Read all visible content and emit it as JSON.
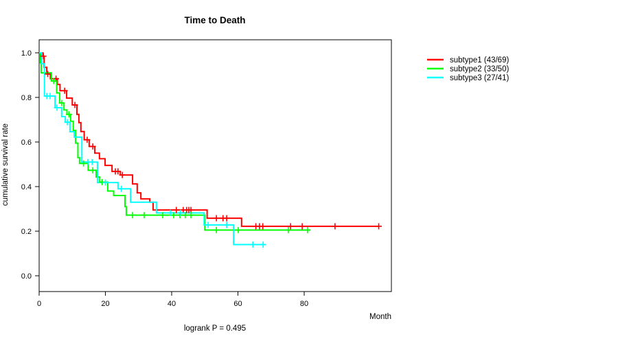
{
  "chart_data": {
    "type": "line",
    "subtype": "kaplan-meier-step-curves",
    "title": "Time to Death",
    "xlabel": "Month",
    "ylabel": "cumulative survival rate",
    "annotation": "logrank P = 0.495",
    "grid": false,
    "legend_position": "right-outside",
    "x_axis": {
      "min": 0,
      "max": 106,
      "ticks": [
        0,
        20,
        40,
        60,
        80
      ],
      "tick_labels": [
        "0",
        "20",
        "40",
        "60",
        "80"
      ]
    },
    "y_axis": {
      "min": 0.0,
      "max": 1.0,
      "ticks": [
        0.0,
        0.2,
        0.4,
        0.6,
        0.8,
        1.0
      ],
      "tick_labels": [
        "0.0",
        "0.2",
        "0.4",
        "0.6",
        "0.8",
        "1.0"
      ]
    },
    "series": [
      {
        "name": "subtype1 (43/69)",
        "color": "#ff0000",
        "events": 43,
        "n": 69,
        "end_month": 102.5,
        "steps": [
          [
            0,
            1.0
          ],
          [
            1.1,
            0.985
          ],
          [
            1.5,
            0.935
          ],
          [
            2.3,
            0.905
          ],
          [
            3.4,
            0.884
          ],
          [
            5.5,
            0.858
          ],
          [
            6.3,
            0.83
          ],
          [
            8.3,
            0.797
          ],
          [
            10.0,
            0.766
          ],
          [
            11.4,
            0.724
          ],
          [
            12.0,
            0.687
          ],
          [
            12.6,
            0.647
          ],
          [
            13.6,
            0.61
          ],
          [
            15.1,
            0.58
          ],
          [
            16.8,
            0.55
          ],
          [
            18.2,
            0.525
          ],
          [
            19.9,
            0.495
          ],
          [
            22.0,
            0.468
          ],
          [
            24.5,
            0.452
          ],
          [
            28.2,
            0.412
          ],
          [
            29.6,
            0.372
          ],
          [
            30.7,
            0.345
          ],
          [
            33.4,
            0.33
          ],
          [
            34.4,
            0.295
          ],
          [
            50.7,
            0.258
          ],
          [
            61.1,
            0.222
          ]
        ],
        "censors": [
          [
            1.3,
            0.985
          ],
          [
            2.6,
            0.905
          ],
          [
            5.1,
            0.884
          ],
          [
            7.7,
            0.83
          ],
          [
            10.8,
            0.766
          ],
          [
            14.5,
            0.61
          ],
          [
            16.2,
            0.58
          ],
          [
            23.0,
            0.468
          ],
          [
            23.8,
            0.468
          ],
          [
            25.1,
            0.452
          ],
          [
            41.4,
            0.295
          ],
          [
            43.5,
            0.295
          ],
          [
            44.5,
            0.295
          ],
          [
            45.2,
            0.295
          ],
          [
            45.8,
            0.295
          ],
          [
            53.5,
            0.258
          ],
          [
            55.5,
            0.258
          ],
          [
            56.6,
            0.258
          ],
          [
            65.4,
            0.222
          ],
          [
            66.5,
            0.222
          ],
          [
            67.5,
            0.222
          ],
          [
            75.9,
            0.222
          ],
          [
            79.4,
            0.222
          ],
          [
            89.3,
            0.222
          ],
          [
            102.5,
            0.222
          ]
        ]
      },
      {
        "name": "subtype2 (33/50)",
        "color": "#00ff00",
        "events": 33,
        "n": 50,
        "end_month": 81.9,
        "steps": [
          [
            0,
            1.0
          ],
          [
            0.4,
            0.955
          ],
          [
            0.6,
            0.91
          ],
          [
            3.7,
            0.874
          ],
          [
            5.3,
            0.82
          ],
          [
            6.2,
            0.775
          ],
          [
            7.5,
            0.744
          ],
          [
            8.4,
            0.724
          ],
          [
            9.5,
            0.693
          ],
          [
            10.3,
            0.652
          ],
          [
            11.0,
            0.595
          ],
          [
            11.7,
            0.53
          ],
          [
            12.2,
            0.504
          ],
          [
            14.8,
            0.473
          ],
          [
            17.2,
            0.443
          ],
          [
            18.3,
            0.42
          ],
          [
            20.7,
            0.38
          ],
          [
            22.5,
            0.36
          ],
          [
            25.9,
            0.31
          ],
          [
            26.3,
            0.272
          ],
          [
            50.0,
            0.205
          ]
        ],
        "censors": [
          [
            4.4,
            0.874
          ],
          [
            6.8,
            0.775
          ],
          [
            9.0,
            0.724
          ],
          [
            13.4,
            0.504
          ],
          [
            16.2,
            0.473
          ],
          [
            19.0,
            0.42
          ],
          [
            28.2,
            0.272
          ],
          [
            31.7,
            0.272
          ],
          [
            37.3,
            0.272
          ],
          [
            40.6,
            0.272
          ],
          [
            42.5,
            0.272
          ],
          [
            44.1,
            0.272
          ],
          [
            45.8,
            0.272
          ],
          [
            53.5,
            0.205
          ],
          [
            60.1,
            0.205
          ],
          [
            75.2,
            0.205
          ],
          [
            81.0,
            0.205
          ]
        ]
      },
      {
        "name": "subtype3 (27/41)",
        "color": "#00ffff",
        "events": 27,
        "n": 41,
        "end_month": 68.3,
        "steps": [
          [
            0,
            1.0
          ],
          [
            0.8,
            0.951
          ],
          [
            1.6,
            0.806
          ],
          [
            4.8,
            0.754
          ],
          [
            6.8,
            0.714
          ],
          [
            7.9,
            0.689
          ],
          [
            9.3,
            0.646
          ],
          [
            10.6,
            0.622
          ],
          [
            12.9,
            0.51
          ],
          [
            17.6,
            0.418
          ],
          [
            23.8,
            0.39
          ],
          [
            27.6,
            0.33
          ],
          [
            35.4,
            0.282
          ],
          [
            49.8,
            0.228
          ],
          [
            58.7,
            0.14
          ]
        ],
        "censors": [
          [
            2.3,
            0.806
          ],
          [
            3.3,
            0.806
          ],
          [
            5.4,
            0.754
          ],
          [
            8.5,
            0.689
          ],
          [
            14.7,
            0.51
          ],
          [
            16.0,
            0.51
          ],
          [
            20.0,
            0.418
          ],
          [
            24.8,
            0.39
          ],
          [
            39.6,
            0.282
          ],
          [
            42.7,
            0.282
          ],
          [
            51.0,
            0.228
          ],
          [
            56.6,
            0.228
          ],
          [
            64.5,
            0.14
          ],
          [
            67.6,
            0.14
          ]
        ]
      }
    ]
  }
}
